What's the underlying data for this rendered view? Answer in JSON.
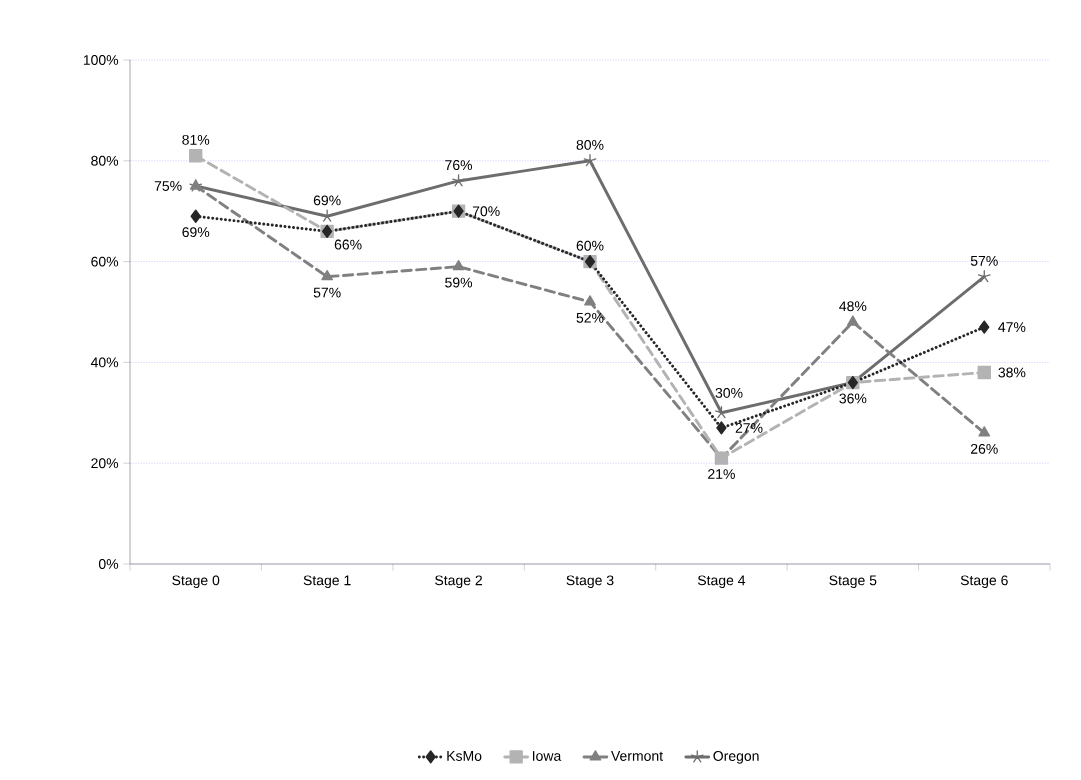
{
  "chart_data": {
    "type": "line",
    "categories": [
      "Stage 0",
      "Stage 1",
      "Stage 2",
      "Stage 3",
      "Stage 4",
      "Stage 5",
      "Stage 6"
    ],
    "series": [
      {
        "name": "KsMo",
        "color": "#262626",
        "marker": "diamond",
        "line_style": "dotted",
        "values": [
          69,
          66,
          70,
          60,
          27,
          36,
          47
        ],
        "value_labels": [
          "69%",
          null,
          null,
          null,
          "27%",
          null,
          "47%"
        ]
      },
      {
        "name": "Iowa",
        "color": "#b3b3b3",
        "marker": "square",
        "line_style": "dashed",
        "values": [
          81,
          66,
          70,
          60,
          21,
          36,
          38
        ],
        "value_labels": [
          "81%",
          "66%",
          "70%",
          "60%",
          "21%",
          "36%",
          "38%"
        ]
      },
      {
        "name": "Vermont",
        "color": "#808080",
        "marker": "triangle",
        "line_style": "dashed",
        "values": [
          75,
          57,
          59,
          52,
          21,
          48,
          26
        ],
        "value_labels": [
          null,
          "57%",
          "59%",
          "52%",
          null,
          "48%",
          "26%"
        ]
      },
      {
        "name": "Oregon",
        "color": "#6d6d6d",
        "marker": "cross",
        "line_style": "solid",
        "values": [
          75,
          69,
          76,
          80,
          30,
          36,
          57
        ],
        "value_labels": [
          "75%",
          "69%",
          "76%",
          "80%",
          "30%",
          null,
          "57%"
        ]
      }
    ],
    "ylim": [
      0,
      100
    ],
    "yticks": [
      {
        "value": 0,
        "label": "0%"
      },
      {
        "value": 20,
        "label": "20%"
      },
      {
        "value": 40,
        "label": "40%"
      },
      {
        "value": 60,
        "label": "60%"
      },
      {
        "value": 80,
        "label": "80%"
      },
      {
        "value": 100,
        "label": "100%"
      }
    ],
    "grid": "y",
    "legend": "bottom"
  }
}
